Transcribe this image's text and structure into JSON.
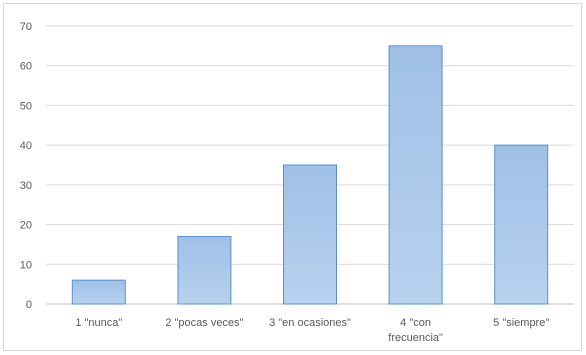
{
  "chart_data": {
    "type": "bar",
    "categories": [
      [
        "1 \"nunca\""
      ],
      [
        "2 \"pocas veces\""
      ],
      [
        "3 \"en ocasiones\""
      ],
      [
        "4 \"con",
        "frecuencia\""
      ],
      [
        "5 \"siempre\""
      ]
    ],
    "values": [
      6,
      17,
      35,
      65,
      40
    ],
    "ylim": [
      0,
      70
    ],
    "yticks": [
      0,
      10,
      20,
      30,
      40,
      50,
      60,
      70
    ],
    "grid": true,
    "colors": {
      "bar_top": "#9fc0e6",
      "bar_bottom": "#b8d2ef",
      "bar_edge": "#5b8fd0",
      "grid": "#d9d9d9",
      "axis": "#bfbfbf"
    }
  }
}
